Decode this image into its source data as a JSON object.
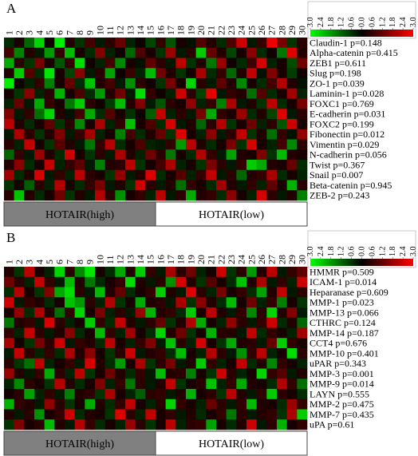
{
  "chart_data": [
    {
      "type": "heatmap",
      "panel_label": "A",
      "categories": [
        "1",
        "2",
        "3",
        "4",
        "5",
        "6",
        "7",
        "8",
        "9",
        "10",
        "11",
        "12",
        "13",
        "14",
        "15",
        "16",
        "17",
        "18",
        "19",
        "20",
        "21",
        "22",
        "23",
        "24",
        "25",
        "26",
        "27",
        "28",
        "29",
        "30"
      ],
      "rows": [
        "Claudin-1 p=0.148",
        "Alpha-catenin p=0.415",
        "ZEB1 p=0.611",
        "Slug p=0.198",
        "ZO-1 p=0.039",
        "Laminin-1 p=0.028",
        "FOXC1 p=0.769",
        "E-cadherin p=0.031",
        "FOXC2 p=0.199",
        "Fibonectin p=0.012",
        "Vimentin p=0.029",
        "N-cadherin p=0.056",
        "Twist p=0.367",
        "Snail p=0.007",
        "Beta-catenin p=0.945",
        "ZEB-2 p=0.243"
      ],
      "values": [
        [
          -0.5,
          0.3,
          -1.2,
          -2.5,
          0.2,
          -2.8,
          0.4,
          -0.6,
          0.8,
          -0.3,
          0.5,
          1.2,
          -0.4,
          0.2,
          -0.8,
          0.6,
          -1.0,
          0.3,
          -0.2,
          1.0,
          0.4,
          -0.5,
          0.9,
          2.4,
          -0.3,
          0.6,
          2.8,
          1.4,
          -0.6,
          0.5
        ],
        [
          0.8,
          -1.5,
          0.4,
          -0.3,
          -1.8,
          0.6,
          -2.2,
          0.3,
          -0.5,
          1.5,
          -0.4,
          0.2,
          -1.2,
          0.9,
          0.3,
          -0.6,
          1.8,
          -0.3,
          0.5,
          -2.4,
          1.2,
          0.4,
          -0.8,
          0.3,
          1.6,
          -0.5,
          0.2,
          -1.4,
          2.6,
          0.4
        ],
        [
          -2.0,
          0.5,
          -0.6,
          1.4,
          0.3,
          -1.0,
          0.6,
          -2.6,
          0.2,
          -0.4,
          0.8,
          -1.6,
          0.3,
          -0.2,
          1.1,
          0.5,
          -0.3,
          2.2,
          -0.6,
          0.4,
          -1.4,
          1.8,
          0.2,
          -0.5,
          0.7,
          2.5,
          -0.4,
          0.3,
          -0.9,
          1.3
        ],
        [
          0.4,
          -2.4,
          1.0,
          -0.5,
          -2.7,
          0.3,
          -0.8,
          1.6,
          -0.3,
          0.5,
          -1.9,
          0.2,
          0.7,
          -0.4,
          -2.2,
          1.3,
          0.4,
          -0.6,
          0.3,
          2.0,
          -0.5,
          0.6,
          -1.2,
          0.4,
          2.3,
          -0.2,
          1.5,
          0.3,
          -0.7,
          0.2
        ],
        [
          -2.8,
          0.2,
          -0.4,
          0.6,
          -1.5,
          0.3,
          1.2,
          -0.5,
          -2.3,
          0.4,
          0.8,
          -0.3,
          -1.7,
          0.5,
          0.2,
          -0.6,
          1.4,
          0.3,
          -2.5,
          0.5,
          -0.3,
          1.1,
          0.4,
          -1.6,
          0.3,
          -0.5,
          0.8,
          2.1,
          0.4,
          -0.2
        ],
        [
          0.3,
          -0.6,
          1.6,
          -0.4,
          0.5,
          -2.1,
          0.3,
          0.9,
          -0.5,
          -1.8,
          0.4,
          1.3,
          -0.3,
          -2.6,
          0.6,
          0.2,
          -0.4,
          2.4,
          0.5,
          -0.8,
          2.7,
          -0.3,
          0.6,
          0.4,
          -1.3,
          1.0,
          -0.5,
          0.3,
          1.9,
          -0.4
        ],
        [
          -0.4,
          1.2,
          -0.3,
          -2.0,
          0.6,
          0.3,
          -1.4,
          -2.4,
          0.5,
          0.2,
          -0.7,
          -2.2,
          0.4,
          1.5,
          -0.3,
          -1.0,
          0.5,
          0.3,
          1.7,
          -0.4,
          0.6,
          -1.5,
          2.0,
          -0.3,
          0.4,
          -0.6,
          2.2,
          -0.5,
          0.3,
          1.4
        ],
        [
          1.5,
          -0.3,
          0.6,
          -1.3,
          -2.5,
          0.4,
          -0.2,
          0.8,
          -2.0,
          -0.5,
          1.0,
          0.3,
          -0.6,
          0.2,
          -1.1,
          2.3,
          -0.4,
          0.5,
          -0.3,
          1.4,
          -2.0,
          0.6,
          0.3,
          1.8,
          -0.5,
          0.4,
          -0.8,
          2.6,
          -0.3,
          0.5
        ],
        [
          2.2,
          0.4,
          -0.5,
          0.3,
          1.1,
          -0.6,
          0.5,
          -1.6,
          0.3,
          2.0,
          -0.4,
          0.6,
          -2.3,
          0.3,
          0.9,
          -0.5,
          2.5,
          -0.3,
          0.4,
          -1.2,
          0.5,
          2.1,
          -0.6,
          0.3,
          1.3,
          -0.4,
          0.5,
          -1.0,
          2.4,
          0.3
        ],
        [
          -0.3,
          2.0,
          0.5,
          -0.6,
          0.4,
          1.5,
          -0.3,
          0.6,
          1.9,
          -0.4,
          0.3,
          -1.5,
          0.8,
          -0.5,
          0.4,
          1.2,
          -0.6,
          2.6,
          0.3,
          -0.4,
          1.6,
          -0.3,
          0.5,
          2.3,
          -0.6,
          0.4,
          -1.3,
          0.6,
          -0.2,
          1.7
        ],
        [
          0.5,
          -0.4,
          2.3,
          0.3,
          -0.6,
          1.0,
          0.4,
          -0.3,
          -1.4,
          0.6,
          2.1,
          -0.5,
          0.3,
          0.9,
          -0.4,
          -0.3,
          0.6,
          -1.8,
          2.2,
          0.4,
          -0.5,
          0.3,
          1.4,
          -0.6,
          2.5,
          0.3,
          -0.4,
          0.8,
          -1.6,
          0.5
        ],
        [
          -1.2,
          0.6,
          -0.3,
          1.8,
          0.4,
          -0.5,
          2.4,
          0.3,
          -0.6,
          0.5,
          -0.3,
          2.0,
          0.4,
          -0.4,
          1.3,
          0.5,
          -1.4,
          0.3,
          -0.5,
          2.1,
          0.6,
          -0.3,
          -1.9,
          0.4,
          0.3,
          1.5,
          -0.6,
          -2.2,
          0.4,
          0.3
        ],
        [
          0.4,
          1.6,
          -0.5,
          0.3,
          2.3,
          -0.4,
          0.6,
          1.1,
          -0.3,
          -1.5,
          0.4,
          0.5,
          2.2,
          -0.6,
          0.3,
          0.8,
          2.0,
          -0.4,
          0.3,
          -0.6,
          1.4,
          0.5,
          -0.3,
          0.6,
          -2.4,
          -2.0,
          0.4,
          0.3,
          1.2,
          -0.5
        ],
        [
          1.9,
          -0.5,
          0.4,
          2.5,
          -0.3,
          0.6,
          -0.4,
          2.2,
          0.5,
          0.3,
          -0.6,
          1.7,
          -0.3,
          0.4,
          2.6,
          -0.5,
          0.3,
          1.0,
          -0.4,
          0.6,
          2.3,
          -0.3,
          0.5,
          -1.2,
          0.4,
          0.6,
          2.0,
          -0.5,
          0.3,
          -0.4
        ],
        [
          -0.6,
          0.3,
          -1.1,
          0.5,
          -0.4,
          2.1,
          0.3,
          -0.5,
          0.6,
          1.4,
          -0.3,
          0.4,
          -0.6,
          2.4,
          0.5,
          -0.3,
          0.4,
          -1.3,
          0.6,
          0.3,
          -0.5,
          1.9,
          0.4,
          -0.3,
          0.6,
          -0.4,
          1.1,
          0.3,
          -2.1,
          0.5
        ],
        [
          0.5,
          -2.3,
          0.4,
          -0.5,
          0.3,
          1.3,
          -0.6,
          0.4,
          -0.3,
          2.1,
          0.5,
          -1.7,
          0.3,
          0.6,
          -0.4,
          2.2,
          -0.3,
          0.5,
          -2.0,
          0.4,
          0.6,
          -0.5,
          1.6,
          0.3,
          -0.4,
          2.5,
          0.5,
          -0.3,
          0.4,
          -1.5
        ]
      ],
      "clim": [
        -3,
        3
      ],
      "colors": {
        "low": "#00ff00",
        "mid": "#000000",
        "high": "#ff0000"
      },
      "colorbar_ticks": [
        {
          "value": -3,
          "label": "3.0"
        },
        {
          "value": -2.4,
          "label": "2.4"
        },
        {
          "value": -1.8,
          "label": "1.8"
        },
        {
          "value": -1.2,
          "label": "1.2"
        },
        {
          "value": -0.6,
          "label": "0.6"
        },
        {
          "value": 0,
          "label": "0.0"
        },
        {
          "value": 0.6,
          "label": "0.6"
        },
        {
          "value": 1.2,
          "label": "1.2"
        },
        {
          "value": 1.8,
          "label": "1.8"
        },
        {
          "value": 2.4,
          "label": "2.4"
        },
        {
          "value": 3,
          "label": "3.0"
        }
      ],
      "groups": [
        {
          "label": "HOTAIR(high)",
          "color": "#808080"
        },
        {
          "label": "HOTAIR(low)",
          "color": "#ffffff"
        }
      ]
    },
    {
      "type": "heatmap",
      "panel_label": "B",
      "categories": [
        "1",
        "2",
        "3",
        "4",
        "5",
        "6",
        "7",
        "8",
        "9",
        "10",
        "11",
        "12",
        "13",
        "14",
        "15",
        "16",
        "17",
        "18",
        "19",
        "20",
        "21",
        "22",
        "23",
        "24",
        "25",
        "26",
        "27",
        "28",
        "29",
        "30"
      ],
      "rows": [
        "HMMR p=0.509",
        "ICAM-1 p=0.014",
        "Heparanase p=0.609",
        "MMP-1 p=0.023",
        "MMP-13 p=0.066",
        "CTHRC p=0.124",
        "MMP-14 p=0.187",
        "CCT4 p=0.676",
        "MMP-10 p=0.401",
        "uPAR p=0.343",
        "MMP-3 p=0.001",
        "MMP-9 p=0.014",
        "LAYN p=0.555",
        "MMP-2 p=0.475",
        "MMP-7 p=0.435",
        "uPA p=0.61"
      ],
      "values": [
        [
          0.4,
          -0.6,
          2.2,
          0.3,
          -0.4,
          -2.5,
          0.5,
          -1.6,
          -2.7,
          0.3,
          -0.5,
          -2.0,
          0.4,
          -2.4,
          0.6,
          -0.3,
          2.0,
          0.5,
          1.3,
          -0.4,
          0.3,
          2.4,
          -0.6,
          0.5,
          -1.8,
          0.4,
          2.2,
          -0.3,
          0.6,
          1.1
        ],
        [
          1.3,
          0.5,
          -0.4,
          2.3,
          0.6,
          -0.3,
          -2.2,
          0.4,
          -1.4,
          -0.5,
          0.3,
          0.6,
          -2.6,
          0.4,
          -0.3,
          0.5,
          -1.7,
          2.5,
          0.4,
          -0.6,
          1.0,
          0.3,
          -0.5,
          -2.3,
          0.4,
          2.0,
          -0.3,
          0.6,
          -0.4,
          2.4
        ],
        [
          -0.5,
          2.1,
          0.3,
          -0.6,
          1.5,
          -2.0,
          -2.6,
          0.5,
          -0.3,
          -2.2,
          0.4,
          1.2,
          -0.5,
          0.3,
          0.6,
          -2.4,
          0.4,
          -0.3,
          2.6,
          0.5,
          -0.4,
          1.4,
          0.3,
          0.6,
          -0.5,
          -1.9,
          0.4,
          2.3,
          -0.3,
          0.5
        ],
        [
          2.4,
          -0.3,
          0.6,
          0.4,
          -0.5,
          0.3,
          -2.3,
          -1.8,
          0.5,
          -0.4,
          2.1,
          -0.6,
          0.3,
          -2.0,
          0.4,
          0.5,
          -0.3,
          2.0,
          -0.6,
          1.6,
          0.4,
          -0.5,
          -2.2,
          0.3,
          1.3,
          -0.4,
          0.6,
          -1.5,
          0.3,
          -0.6
        ],
        [
          0.3,
          1.7,
          -0.5,
          2.0,
          0.4,
          -1.3,
          0.6,
          -2.5,
          0.3,
          1.4,
          -0.4,
          0.5,
          -0.3,
          1.8,
          -2.1,
          0.4,
          0.6,
          -0.5,
          -2.4,
          0.3,
          2.2,
          0.4,
          -0.3,
          0.6,
          -1.6,
          0.5,
          -2.5,
          0.4,
          1.5,
          -0.3
        ],
        [
          -1.4,
          0.4,
          0.6,
          -0.3,
          2.5,
          0.5,
          -0.4,
          0.3,
          -2.4,
          0.6,
          -0.5,
          2.3,
          0.4,
          -0.3,
          0.5,
          1.2,
          -0.6,
          0.4,
          2.1,
          -2.0,
          0.3,
          -0.4,
          1.7,
          0.5,
          -0.3,
          0.6,
          2.4,
          -0.5,
          0.4,
          -1.2
        ],
        [
          0.6,
          -0.4,
          2.3,
          0.5,
          -0.3,
          0.4,
          1.6,
          -0.5,
          0.3,
          -2.2,
          0.6,
          -0.4,
          1.9,
          0.3,
          -0.5,
          -2.5,
          0.4,
          1.3,
          -0.6,
          0.3,
          -2.1,
          0.5,
          0.4,
          -0.3,
          2.3,
          -0.5,
          0.6,
          0.3,
          -0.4,
          1.9
        ],
        [
          2.0,
          0.3,
          -0.6,
          1.4,
          0.5,
          2.4,
          -0.3,
          0.6,
          0.4,
          -0.5,
          2.2,
          0.3,
          -0.4,
          0.6,
          1.5,
          -0.3,
          -2.3,
          0.5,
          -0.4,
          2.5,
          0.3,
          -0.6,
          -2.0,
          0.4,
          0.5,
          -0.3,
          1.2,
          -2.4,
          0.6,
          0.3
        ],
        [
          -0.3,
          2.3,
          0.5,
          -0.4,
          0.6,
          -0.5,
          2.0,
          0.4,
          1.6,
          0.3,
          -0.6,
          0.5,
          2.4,
          -0.3,
          0.4,
          0.6,
          -0.5,
          -2.2,
          0.3,
          -0.4,
          2.1,
          0.5,
          -0.3,
          -1.7,
          0.6,
          2.2,
          -0.4,
          0.3,
          -2.6,
          0.5
        ],
        [
          0.5,
          -0.6,
          -1.3,
          2.2,
          -0.4,
          0.3,
          0.6,
          -0.3,
          2.5,
          0.4,
          -0.5,
          -1.8,
          0.3,
          2.0,
          -0.6,
          0.5,
          1.4,
          -0.3,
          0.4,
          -2.4,
          0.6,
          -0.4,
          0.3,
          2.3,
          -0.5,
          0.4,
          -1.6,
          0.6,
          0.3,
          -0.4
        ],
        [
          1.8,
          0.4,
          -0.3,
          0.6,
          -2.0,
          0.5,
          -0.4,
          2.2,
          -0.6,
          0.3,
          1.3,
          0.4,
          -0.5,
          0.6,
          -0.3,
          -2.2,
          0.4,
          0.5,
          -1.5,
          0.3,
          -0.6,
          2.4,
          0.5,
          -0.4,
          0.3,
          -2.5,
          0.6,
          1.0,
          -0.3,
          0.4
        ],
        [
          -0.4,
          -1.6,
          0.5,
          0.3,
          -0.6,
          2.1,
          0.4,
          -0.5,
          0.3,
          1.5,
          -0.4,
          0.6,
          -1.4,
          0.5,
          -0.3,
          0.4,
          2.3,
          -0.6,
          0.3,
          0.5,
          -2.3,
          -0.4,
          0.6,
          -2.0,
          0.4,
          0.3,
          -0.5,
          2.1,
          0.6,
          -1.3
        ],
        [
          0.3,
          0.5,
          -1.9,
          -0.4,
          0.6,
          -0.3,
          -1.5,
          0.4,
          0.5,
          -0.6,
          2.0,
          0.3,
          -0.4,
          -1.1,
          0.5,
          0.6,
          -0.3,
          0.4,
          -2.1,
          0.3,
          0.5,
          -0.6,
          2.2,
          0.4,
          -0.3,
          0.6,
          -2.4,
          0.5,
          0.3,
          -0.5
        ],
        [
          -2.1,
          0.6,
          0.4,
          -0.3,
          1.7,
          0.5,
          -0.6,
          0.3,
          -2.0,
          0.4,
          -0.5,
          0.6,
          2.3,
          0.3,
          -0.4,
          0.5,
          -2.5,
          0.6,
          0.3,
          -0.4,
          1.2,
          0.5,
          -0.3,
          0.6,
          -2.2,
          0.4,
          0.3,
          -0.5,
          1.8,
          0.6
        ],
        [
          0.4,
          -0.3,
          0.5,
          -1.7,
          0.3,
          0.6,
          2.4,
          -0.5,
          0.4,
          0.3,
          -0.6,
          2.6,
          0.5,
          -0.4,
          2.3,
          0.3,
          0.6,
          -0.3,
          0.4,
          -0.5,
          0.3,
          0.6,
          -1.4,
          0.5,
          -0.3,
          0.4,
          0.6,
          -0.6,
          2.0,
          -2.4
        ],
        [
          -0.6,
          1.5,
          0.3,
          0.5,
          -2.2,
          0.4,
          -0.3,
          2.1,
          0.6,
          -0.5,
          0.3,
          -0.4,
          1.8,
          0.5,
          -0.6,
          0.3,
          2.2,
          -0.4,
          0.5,
          0.6,
          -1.9,
          0.3,
          -0.5,
          0.4,
          2.4,
          -0.3,
          0.5,
          -2.1,
          0.3,
          0.6
        ]
      ],
      "clim": [
        -3,
        3
      ],
      "colors": {
        "low": "#00ff00",
        "mid": "#000000",
        "high": "#ff0000"
      },
      "colorbar_ticks": [
        {
          "value": -3,
          "label": "3.0"
        },
        {
          "value": -2.4,
          "label": "2.4"
        },
        {
          "value": -1.8,
          "label": "1.8"
        },
        {
          "value": -1.2,
          "label": "1.2"
        },
        {
          "value": -0.6,
          "label": "0.6"
        },
        {
          "value": 0,
          "label": "0.0"
        },
        {
          "value": 0.6,
          "label": "0.6"
        },
        {
          "value": 1.2,
          "label": "1.2"
        },
        {
          "value": 1.8,
          "label": "1.8"
        },
        {
          "value": 2.4,
          "label": "2.4"
        },
        {
          "value": 3,
          "label": "3.0"
        }
      ],
      "groups": [
        {
          "label": "HOTAIR(high)",
          "color": "#808080"
        },
        {
          "label": "HOTAIR(low)",
          "color": "#ffffff"
        }
      ]
    }
  ]
}
